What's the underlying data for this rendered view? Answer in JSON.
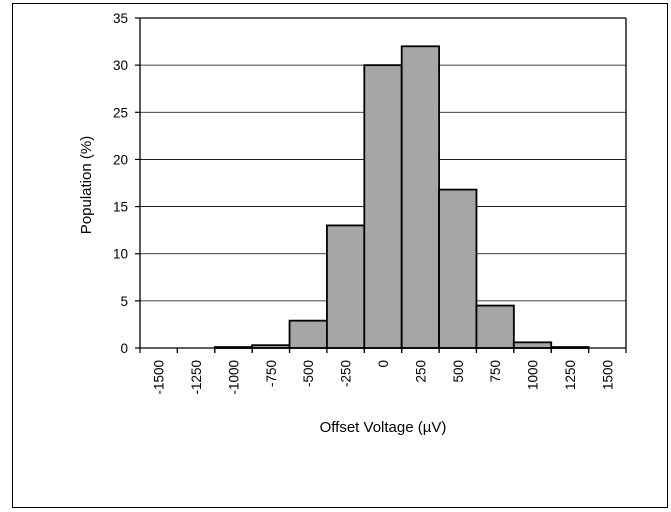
{
  "chart_data": {
    "type": "bar",
    "title": "",
    "xlabel": "Offset Voltage (µV)",
    "ylabel": "Population (%)",
    "x_tick_labels": [
      "-1500",
      "-1250",
      "-1000",
      "-750",
      "-500",
      "-250",
      "0",
      "250",
      "500",
      "750",
      "1000",
      "1250",
      "1500"
    ],
    "x_tick_values": [
      -1500,
      -1250,
      -1000,
      -750,
      -500,
      -250,
      0,
      250,
      500,
      750,
      1000,
      1250,
      1500
    ],
    "y_tick_labels": [
      "0",
      "5",
      "10",
      "15",
      "20",
      "25",
      "30",
      "35"
    ],
    "y_tick_values": [
      0,
      5,
      10,
      15,
      20,
      25,
      30,
      35
    ],
    "xlim": [
      -1625,
      1625
    ],
    "ylim": [
      0,
      35
    ],
    "bin_width": 250,
    "bin_centers": [
      -1500,
      -1250,
      -1000,
      -750,
      -500,
      -250,
      0,
      250,
      500,
      750,
      1000,
      1250,
      1500
    ],
    "values": [
      0,
      0,
      0.1,
      0.3,
      2.9,
      13,
      30,
      32,
      16.8,
      4.5,
      0.6,
      0.1,
      0
    ],
    "grid": "horizontal",
    "legend": "none",
    "bar_color": "#a6a6a6",
    "bar_edge_color": "#000000"
  }
}
